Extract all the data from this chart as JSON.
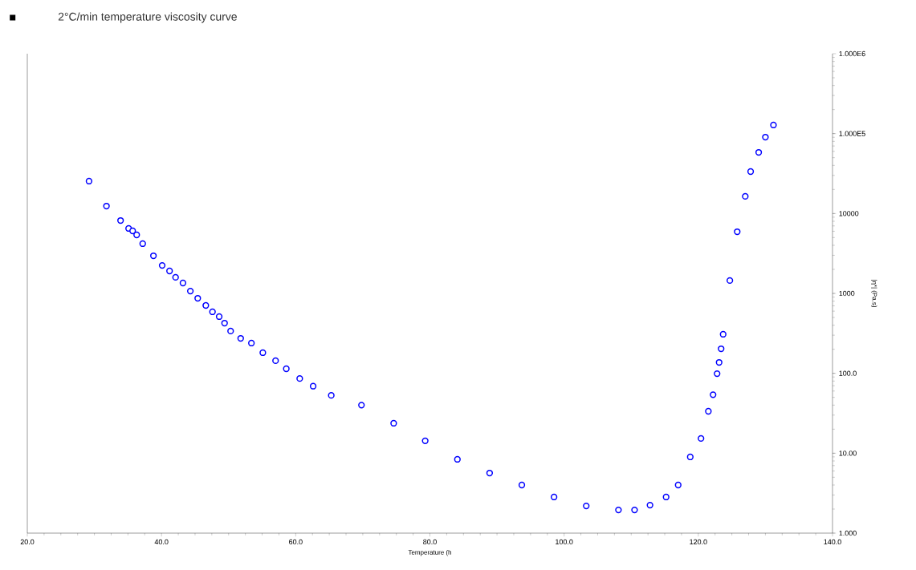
{
  "chart_data": {
    "type": "scatter",
    "title": "2°C/min temperature viscosity curve",
    "xlabel": "Temperature (h",
    "ylabel": "|η*|  (Pa.s)",
    "x": [
      29.2,
      31.8,
      33.9,
      35.1,
      35.7,
      36.3,
      37.2,
      38.8,
      40.1,
      41.2,
      42.1,
      43.2,
      44.3,
      45.4,
      46.6,
      47.6,
      48.6,
      49.4,
      50.3,
      51.8,
      53.4,
      55.1,
      57.0,
      58.6,
      60.6,
      62.6,
      65.3,
      69.8,
      74.6,
      79.3,
      84.1,
      88.9,
      93.7,
      98.5,
      103.3,
      108.1,
      110.5,
      112.8,
      115.2,
      117.0,
      118.8,
      120.4,
      121.5,
      122.2,
      122.8,
      123.1,
      123.4,
      123.7,
      124.7,
      125.8,
      127.0,
      127.8,
      129.0,
      130.0,
      131.2
    ],
    "series": [
      {
        "color": "#0000ff",
        "values": [
          25400,
          12400,
          8180,
          6500,
          6060,
          5400,
          4190,
          2960,
          2240,
          1910,
          1590,
          1350,
          1070,
          870,
          707,
          588,
          512,
          425,
          338,
          274,
          239,
          181,
          144,
          114,
          86,
          69,
          53,
          40,
          23.7,
          14.3,
          8.38,
          5.65,
          4.0,
          2.83,
          2.19,
          1.95,
          1.95,
          2.24,
          2.83,
          4.0,
          8.98,
          15.3,
          33.5,
          54,
          99,
          137,
          203,
          308,
          1450,
          5920,
          16400,
          33500,
          58300,
          90400,
          128000
        ]
      }
    ],
    "marker": "circle",
    "log": "y",
    "grid": false,
    "xlim": [
      20,
      140
    ],
    "xticks": [
      {
        "value": 20,
        "label": "20.0"
      },
      {
        "value": 40,
        "label": "40.0"
      },
      {
        "value": 60,
        "label": "60.0"
      },
      {
        "value": 80,
        "label": "80.0"
      },
      {
        "value": 100,
        "label": "100.0"
      },
      {
        "value": 120,
        "label": "120.0"
      },
      {
        "value": 140,
        "label": "140.0"
      }
    ],
    "ylim": [
      1,
      1000000
    ],
    "yticks": [
      {
        "value": 1,
        "label": "1.000"
      },
      {
        "value": 10,
        "label": "10.00"
      },
      {
        "value": 100,
        "label": "100.0"
      },
      1000,
      10000,
      {
        "value": 100000,
        "label": "1.000E5"
      },
      {
        "value": 1000000,
        "label": "1.000E6"
      }
    ]
  }
}
